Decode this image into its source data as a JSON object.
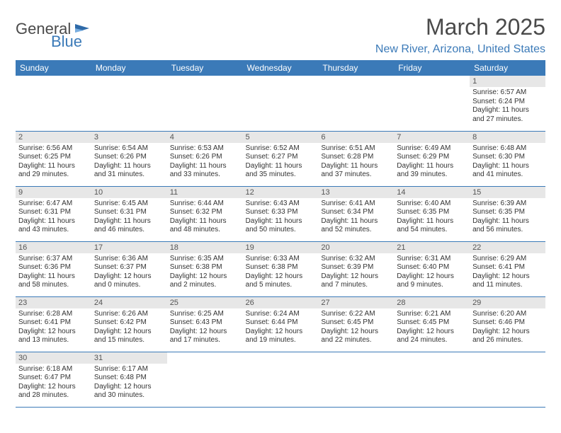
{
  "brand": {
    "general": "General",
    "blue": "Blue"
  },
  "title": "March 2025",
  "location": "New River, Arizona, United States",
  "colors": {
    "header_bg": "#3b7ab8",
    "header_text": "#ffffff",
    "daynum_bg": "#e7e7e7",
    "border": "#3b7ab8",
    "title_color": "#4a4a4a",
    "location_color": "#3b7ab8"
  },
  "weekdays": [
    "Sunday",
    "Monday",
    "Tuesday",
    "Wednesday",
    "Thursday",
    "Friday",
    "Saturday"
  ],
  "leading_blanks": 6,
  "days": [
    {
      "n": 1,
      "sunrise": "6:57 AM",
      "sunset": "6:24 PM",
      "dlh": 11,
      "dlm": 27
    },
    {
      "n": 2,
      "sunrise": "6:56 AM",
      "sunset": "6:25 PM",
      "dlh": 11,
      "dlm": 29
    },
    {
      "n": 3,
      "sunrise": "6:54 AM",
      "sunset": "6:26 PM",
      "dlh": 11,
      "dlm": 31
    },
    {
      "n": 4,
      "sunrise": "6:53 AM",
      "sunset": "6:26 PM",
      "dlh": 11,
      "dlm": 33
    },
    {
      "n": 5,
      "sunrise": "6:52 AM",
      "sunset": "6:27 PM",
      "dlh": 11,
      "dlm": 35
    },
    {
      "n": 6,
      "sunrise": "6:51 AM",
      "sunset": "6:28 PM",
      "dlh": 11,
      "dlm": 37
    },
    {
      "n": 7,
      "sunrise": "6:49 AM",
      "sunset": "6:29 PM",
      "dlh": 11,
      "dlm": 39
    },
    {
      "n": 8,
      "sunrise": "6:48 AM",
      "sunset": "6:30 PM",
      "dlh": 11,
      "dlm": 41
    },
    {
      "n": 9,
      "sunrise": "6:47 AM",
      "sunset": "6:31 PM",
      "dlh": 11,
      "dlm": 43
    },
    {
      "n": 10,
      "sunrise": "6:45 AM",
      "sunset": "6:31 PM",
      "dlh": 11,
      "dlm": 46
    },
    {
      "n": 11,
      "sunrise": "6:44 AM",
      "sunset": "6:32 PM",
      "dlh": 11,
      "dlm": 48
    },
    {
      "n": 12,
      "sunrise": "6:43 AM",
      "sunset": "6:33 PM",
      "dlh": 11,
      "dlm": 50
    },
    {
      "n": 13,
      "sunrise": "6:41 AM",
      "sunset": "6:34 PM",
      "dlh": 11,
      "dlm": 52
    },
    {
      "n": 14,
      "sunrise": "6:40 AM",
      "sunset": "6:35 PM",
      "dlh": 11,
      "dlm": 54
    },
    {
      "n": 15,
      "sunrise": "6:39 AM",
      "sunset": "6:35 PM",
      "dlh": 11,
      "dlm": 56
    },
    {
      "n": 16,
      "sunrise": "6:37 AM",
      "sunset": "6:36 PM",
      "dlh": 11,
      "dlm": 58
    },
    {
      "n": 17,
      "sunrise": "6:36 AM",
      "sunset": "6:37 PM",
      "dlh": 12,
      "dlm": 0
    },
    {
      "n": 18,
      "sunrise": "6:35 AM",
      "sunset": "6:38 PM",
      "dlh": 12,
      "dlm": 2
    },
    {
      "n": 19,
      "sunrise": "6:33 AM",
      "sunset": "6:38 PM",
      "dlh": 12,
      "dlm": 5
    },
    {
      "n": 20,
      "sunrise": "6:32 AM",
      "sunset": "6:39 PM",
      "dlh": 12,
      "dlm": 7
    },
    {
      "n": 21,
      "sunrise": "6:31 AM",
      "sunset": "6:40 PM",
      "dlh": 12,
      "dlm": 9
    },
    {
      "n": 22,
      "sunrise": "6:29 AM",
      "sunset": "6:41 PM",
      "dlh": 12,
      "dlm": 11
    },
    {
      "n": 23,
      "sunrise": "6:28 AM",
      "sunset": "6:41 PM",
      "dlh": 12,
      "dlm": 13
    },
    {
      "n": 24,
      "sunrise": "6:26 AM",
      "sunset": "6:42 PM",
      "dlh": 12,
      "dlm": 15
    },
    {
      "n": 25,
      "sunrise": "6:25 AM",
      "sunset": "6:43 PM",
      "dlh": 12,
      "dlm": 17
    },
    {
      "n": 26,
      "sunrise": "6:24 AM",
      "sunset": "6:44 PM",
      "dlh": 12,
      "dlm": 19
    },
    {
      "n": 27,
      "sunrise": "6:22 AM",
      "sunset": "6:45 PM",
      "dlh": 12,
      "dlm": 22
    },
    {
      "n": 28,
      "sunrise": "6:21 AM",
      "sunset": "6:45 PM",
      "dlh": 12,
      "dlm": 24
    },
    {
      "n": 29,
      "sunrise": "6:20 AM",
      "sunset": "6:46 PM",
      "dlh": 12,
      "dlm": 26
    },
    {
      "n": 30,
      "sunrise": "6:18 AM",
      "sunset": "6:47 PM",
      "dlh": 12,
      "dlm": 28
    },
    {
      "n": 31,
      "sunrise": "6:17 AM",
      "sunset": "6:48 PM",
      "dlh": 12,
      "dlm": 30
    }
  ],
  "labels": {
    "sunrise": "Sunrise:",
    "sunset": "Sunset:",
    "daylight_prefix": "Daylight:",
    "hours_word": "hours",
    "and_word": "and",
    "minutes_word": "minutes."
  }
}
